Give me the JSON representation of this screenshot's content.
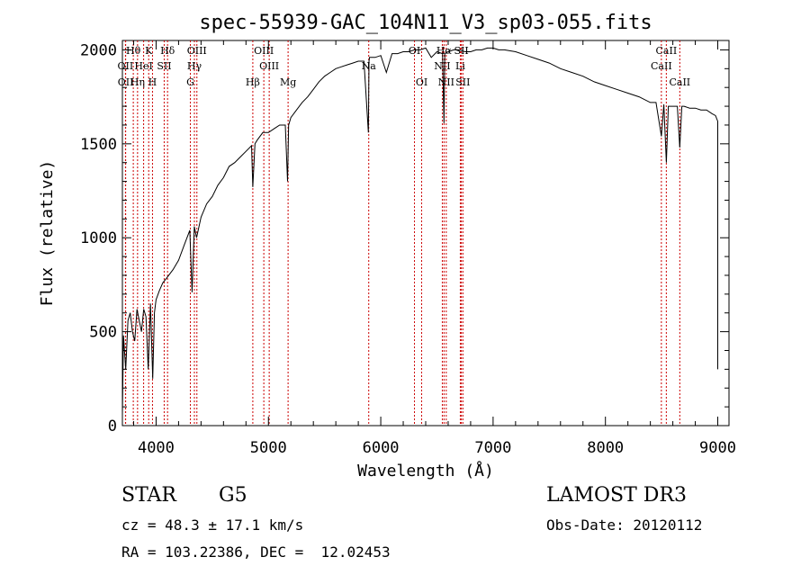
{
  "chart_data": {
    "type": "line",
    "title": "spec-55939-GAC_104N11_V3_sp03-055.fits",
    "xlabel": "Wavelength (Å)",
    "ylabel": "Flux (relative)",
    "xlim": [
      3700,
      9100
    ],
    "ylim": [
      0,
      2050
    ],
    "xticks": [
      4000,
      5000,
      6000,
      7000,
      8000,
      9000
    ],
    "yticks": [
      0,
      500,
      1000,
      1500,
      2000
    ],
    "series": [
      {
        "name": "Flux",
        "x": [
          3700,
          3710,
          3730,
          3750,
          3770,
          3790,
          3810,
          3830,
          3850,
          3870,
          3890,
          3910,
          3930,
          3950,
          3970,
          3985,
          4000,
          4030,
          4060,
          4100,
          4150,
          4200,
          4250,
          4300,
          4320,
          4340,
          4360,
          4400,
          4450,
          4500,
          4550,
          4600,
          4650,
          4700,
          4750,
          4800,
          4850,
          4861,
          4880,
          4900,
          4950,
          5000,
          5050,
          5100,
          5150,
          5170,
          5180,
          5200,
          5250,
          5300,
          5350,
          5400,
          5450,
          5500,
          5550,
          5600,
          5650,
          5700,
          5750,
          5800,
          5850,
          5890,
          5895,
          5900,
          5950,
          6000,
          6050,
          6100,
          6150,
          6200,
          6250,
          6300,
          6350,
          6400,
          6450,
          6500,
          6550,
          6563,
          6570,
          6600,
          6650,
          6700,
          6750,
          6800,
          6850,
          6900,
          6950,
          7000,
          7050,
          7100,
          7200,
          7300,
          7400,
          7500,
          7600,
          7700,
          7800,
          7900,
          8000,
          8100,
          8200,
          8300,
          8400,
          8450,
          8498,
          8520,
          8542,
          8560,
          8600,
          8640,
          8662,
          8680,
          8700,
          8750,
          8800,
          8850,
          8900,
          8950,
          8980,
          9000,
          9000
        ],
        "y": [
          60,
          480,
          300,
          560,
          600,
          500,
          450,
          620,
          560,
          500,
          620,
          580,
          300,
          650,
          250,
          600,
          670,
          720,
          760,
          790,
          830,
          880,
          960,
          1040,
          710,
          1060,
          1000,
          1110,
          1180,
          1220,
          1280,
          1320,
          1380,
          1400,
          1430,
          1460,
          1490,
          1270,
          1500,
          1520,
          1560,
          1560,
          1580,
          1600,
          1600,
          1300,
          1600,
          1640,
          1680,
          1720,
          1750,
          1790,
          1830,
          1860,
          1880,
          1900,
          1910,
          1920,
          1930,
          1940,
          1940,
          1560,
          1940,
          1960,
          1960,
          1970,
          1880,
          1980,
          1980,
          1990,
          1990,
          2000,
          2000,
          2010,
          1960,
          1990,
          1980,
          1610,
          1980,
          1990,
          2000,
          2000,
          1990,
          1990,
          2000,
          2000,
          2010,
          2010,
          2000,
          2000,
          1990,
          1970,
          1950,
          1930,
          1900,
          1880,
          1860,
          1830,
          1810,
          1790,
          1770,
          1750,
          1720,
          1720,
          1540,
          1710,
          1400,
          1700,
          1700,
          1700,
          1480,
          1700,
          1700,
          1690,
          1690,
          1680,
          1680,
          1660,
          1650,
          1620,
          300
        ]
      }
    ],
    "lines": [
      {
        "label": "Hθ",
        "x": 3797,
        "row": 1
      },
      {
        "label": "OII",
        "x": 3727,
        "row": 2
      },
      {
        "label": "OII",
        "x": 3729,
        "row": 3
      },
      {
        "label": "Hη",
        "x": 3835,
        "row": 3
      },
      {
        "label": "K",
        "x": 3934,
        "row": 1
      },
      {
        "label": "HeI",
        "x": 3889,
        "row": 2
      },
      {
        "label": "H",
        "x": 3968,
        "row": 3
      },
      {
        "label": "SII",
        "x": 4072,
        "row": 2
      },
      {
        "label": "Hδ",
        "x": 4102,
        "row": 1
      },
      {
        "label": "OIII",
        "x": 4363,
        "row": 1
      },
      {
        "label": "Hγ",
        "x": 4341,
        "row": 2
      },
      {
        "label": "G",
        "x": 4305,
        "row": 3
      },
      {
        "label": "Hβ",
        "x": 4861,
        "row": 3
      },
      {
        "label": "OIII",
        "x": 4959,
        "row": 1
      },
      {
        "label": "OIII",
        "x": 5007,
        "row": 2
      },
      {
        "label": "Mg",
        "x": 5175,
        "row": 3
      },
      {
        "label": "Na",
        "x": 5893,
        "row": 2
      },
      {
        "label": "OI",
        "x": 6300,
        "row": 1
      },
      {
        "label": "OI",
        "x": 6364,
        "row": 3
      },
      {
        "label": "NII",
        "x": 6548,
        "row": 2
      },
      {
        "label": "Hα",
        "x": 6563,
        "row": 1
      },
      {
        "label": "NII",
        "x": 6583,
        "row": 3
      },
      {
        "label": "SII",
        "x": 6717,
        "row": 1
      },
      {
        "label": "SII",
        "x": 6731,
        "row": 3
      },
      {
        "label": "Li",
        "x": 6708,
        "row": 2
      },
      {
        "label": "CaII",
        "x": 8498,
        "row": 2
      },
      {
        "label": "CaII",
        "x": 8542,
        "row": 1
      },
      {
        "label": "CaII",
        "x": 8662,
        "row": 3
      }
    ]
  },
  "info": {
    "object_class": "STAR",
    "subclass": "G5",
    "survey": "LAMOST DR3",
    "cz": "cz = 48.3 ± 17.1 km/s",
    "obs_date": "Obs-Date: 20120112",
    "coords": "RA = 103.22386, DEC =  12.02453"
  },
  "colors": {
    "line_marker": "#cc0000",
    "spectrum": "#000000"
  }
}
